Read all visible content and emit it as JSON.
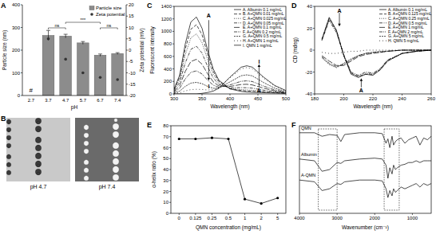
{
  "chart_data": [
    {
      "type": "bar",
      "panel": "A",
      "categories": [
        "2.7",
        "3.7",
        "4.7",
        "5.7",
        "6.7",
        "7.4"
      ],
      "xlabel": "pH",
      "ylabel": "Particle size (nm)",
      "y2label": "Zeta potential (mV)",
      "ylim": [
        0,
        400
      ],
      "yticks": [
        0,
        100,
        200,
        300,
        400
      ],
      "y2lim": [
        -20,
        20
      ],
      "y2ticks": [
        -20,
        -15,
        -10,
        -5,
        0,
        5,
        10,
        15,
        20
      ],
      "legend": "upper right",
      "series": [
        {
          "name": "Particle size",
          "type": "bar",
          "color": "#8c8c8c",
          "values": [
            null,
            265,
            262,
            232,
            178,
            185
          ],
          "errors": [
            null,
            22,
            8,
            6,
            5,
            4
          ]
        },
        {
          "name": "Zeta potential",
          "type": "scatter",
          "axis": "y2",
          "color": "#333333",
          "marker": "circle",
          "values": [
            null,
            5,
            -4,
            -10,
            -12,
            -13
          ]
        }
      ],
      "annotations": [
        {
          "text": "#",
          "category": "2.7"
        }
      ],
      "significance": [
        {
          "text": "ns",
          "from": "3.7",
          "to": "4.7"
        },
        {
          "text": "***",
          "from": "4.7",
          "to": "6.7"
        },
        {
          "text": "ns",
          "from": "6.7",
          "to": "7.4"
        }
      ]
    },
    {
      "type": "image",
      "panel": "B",
      "categories": [
        "pH 4.7",
        "pH 7.4"
      ]
    },
    {
      "type": "line",
      "panel": "C",
      "xlabel": "Wavelength (nm)",
      "ylabel": "Fluorescent intensity",
      "xlim": [
        300,
        500
      ],
      "xticks": [
        300,
        350,
        400,
        450,
        500
      ],
      "ylim": [
        0,
        1400
      ],
      "yticks": [
        0,
        200,
        400,
        600,
        800,
        1000,
        1200,
        1400
      ],
      "legend": "upper right",
      "x": [
        300,
        310,
        320,
        330,
        340,
        350,
        360,
        370,
        380,
        400,
        420,
        430,
        440,
        460,
        480,
        500
      ],
      "series": [
        {
          "name": "A. Albumin 0.1 mg/mL",
          "color": "#000000",
          "line_style": "solid",
          "values": [
            80,
            300,
            800,
            1150,
            1230,
            1050,
            700,
            400,
            220,
            80,
            40,
            30,
            25,
            20,
            15,
            10
          ]
        },
        {
          "name": "B. A+QMN 0.01 mg/mL",
          "color": "#000000",
          "line_style": "dashed",
          "values": [
            72,
            270,
            720,
            1035,
            1107,
            945,
            631,
            362,
            202,
            84,
            55,
            47,
            42,
            30,
            20,
            11
          ]
        },
        {
          "name": "C. A+QMN 0.025 mg/mL",
          "color": "#000000",
          "line_style": "dotted",
          "values": [
            62,
            234,
            624,
            897,
            959,
            820,
            548,
            316,
            180,
            86,
            69,
            63,
            58,
            40,
            24,
            13
          ]
        },
        {
          "name": "D. A+QMN 0.05 mg/mL",
          "color": "#000000",
          "line_style": "dashdot",
          "values": [
            50,
            186,
            496,
            713,
            763,
            653,
            438,
            256,
            152,
            98,
            101,
            99,
            92,
            60,
            33,
            16
          ]
        },
        {
          "name": "E. A+QMN 0.1 mg/mL",
          "color": "#000000",
          "line_style": "longdash",
          "values": [
            36,
            135,
            360,
            518,
            554,
            476,
            322,
            194,
            127,
            120,
            151,
            154,
            144,
            93,
            49,
            22
          ]
        },
        {
          "name": "F. A+QMN 0.2 mg/mL",
          "color": "#000000",
          "line_style": "dashdotdot",
          "values": [
            24,
            90,
            240,
            345,
            369,
            319,
            220,
            140,
            106,
            144,
            202,
            209,
            198,
            126,
            65,
            27
          ]
        },
        {
          "name": "G. A+QMN 0.5 mg/mL",
          "color": "#000000",
          "line_style": "shortdash",
          "values": [
            12,
            45,
            120,
            173,
            185,
            164,
            120,
            90,
            93,
            192,
            291,
            305,
            289,
            183,
            92,
            38
          ]
        },
        {
          "name": "H. A+QMN 1 mg/mL",
          "color": "#000000",
          "line_style": "loosedot",
          "values": [
            5,
            18,
            48,
            69,
            74,
            71,
            63,
            66,
            97,
            257,
            401,
            422,
            401,
            253,
            127,
            51
          ]
        },
        {
          "name": "I. QMN 1 mg/mL",
          "color": "#000000",
          "line_style": "solid",
          "values": [
            0,
            0,
            0,
            0,
            0,
            9,
            23,
            45,
            90,
            270,
            428,
            450,
            428,
            270,
            135,
            54
          ]
        }
      ],
      "annotations": [
        {
          "text": "A",
          "x": 362,
          "y": 1250
        },
        {
          "text": "I",
          "x": 362,
          "y": 120
        },
        {
          "text": "A",
          "x": 452,
          "y": 60
        },
        {
          "text": "I",
          "x": 452,
          "y": 520
        }
      ],
      "arrows": [
        {
          "x": 362,
          "from": 1180,
          "to": 220
        },
        {
          "x": 452,
          "from": 110,
          "to": 470
        }
      ]
    },
    {
      "type": "line",
      "panel": "D",
      "xlabel": "Wavelength (nm)",
      "ylabel": "CD (mdeg)",
      "xlim": [
        180,
        260
      ],
      "xticks": [
        180,
        200,
        220,
        240,
        260
      ],
      "ylim": [
        -40,
        40
      ],
      "yticks": [
        -40,
        -20,
        0,
        20,
        40
      ],
      "legend": "upper right",
      "x": [
        185,
        190,
        195,
        200,
        205,
        210,
        215,
        220,
        225,
        230,
        240,
        250,
        260
      ],
      "series": [
        {
          "name": "A. Albumin 0.1 mg/mL",
          "color": "#000000",
          "line_style": "solid",
          "values": [
            10,
            30,
            18,
            -5,
            -22,
            -25,
            -22,
            -23,
            -18,
            -10,
            -3,
            -1,
            0
          ]
        },
        {
          "name": "B. A+QMN 0.125 mg/mL",
          "color": "#000000",
          "line_style": "dashed",
          "values": [
            10,
            29,
            18,
            -5,
            -21,
            -24,
            -22,
            -22,
            -18,
            -10,
            -3,
            -1,
            0
          ]
        },
        {
          "name": "C. A+QMN 0.25 mg/mL",
          "color": "#000000",
          "line_style": "dotted",
          "values": [
            9,
            28,
            17,
            -5,
            -21,
            -24,
            -21,
            -22,
            -17,
            -9,
            -3,
            -1,
            0
          ]
        },
        {
          "name": "D. A+QMN 0.5 mg/mL",
          "color": "#000000",
          "line_style": "dashdot",
          "values": [
            9,
            27,
            16,
            -4,
            -20,
            -23,
            -20,
            -21,
            -17,
            -9,
            -3,
            -1,
            0
          ]
        },
        {
          "name": "E. A+QMN 1 mg/mL",
          "color": "#000000",
          "line_style": "longdash",
          "values": [
            -5,
            -10,
            -14,
            -14,
            -10,
            -6,
            -4,
            -3,
            -2,
            -1,
            0,
            0,
            0
          ]
        },
        {
          "name": "F. A+QMN 2 mg/mL",
          "color": "#000000",
          "line_style": "dashdotdot",
          "values": [
            -6,
            -12,
            -15,
            -13,
            -9,
            -5,
            -3,
            -2,
            -2,
            -1,
            0,
            0,
            0
          ]
        },
        {
          "name": "G. A+QMN 5 mg/mL",
          "color": "#000000",
          "line_style": "shortdash",
          "values": [
            -7,
            -13,
            -16,
            -12,
            -8,
            -5,
            -3,
            -2,
            -1,
            -1,
            0,
            0,
            0
          ]
        },
        {
          "name": "H. QMN 5 mg/mL",
          "color": "#000000",
          "line_style": "loosedot",
          "values": [
            -2,
            -3,
            -3,
            -2,
            -1,
            -1,
            0,
            0,
            0,
            0,
            0,
            0,
            0
          ]
        }
      ],
      "annotations": [
        {
          "text": "A",
          "x": 197,
          "y": 36
        },
        {
          "text": "A",
          "x": 212,
          "y": -37
        }
      ],
      "arrows": [
        {
          "x": 197,
          "from": 34,
          "to": 22
        },
        {
          "x": 212,
          "from": -34,
          "to": -26
        }
      ]
    },
    {
      "type": "line",
      "panel": "E",
      "xlabel": "QMN concentration (mg/mL)",
      "ylabel": "α-helix ratio (%)",
      "categories": [
        "0",
        "0.125",
        "0.25",
        "0.5",
        "1",
        "2",
        "5"
      ],
      "ylim": [
        0,
        80
      ],
      "yticks": [
        0,
        10,
        20,
        30,
        40,
        50,
        60,
        70,
        80
      ],
      "color": "#000000",
      "marker": "circle",
      "values": [
        68,
        68,
        69,
        68,
        13,
        9,
        14
      ]
    },
    {
      "type": "line",
      "panel": "F",
      "xlabel": "Wavenumber (cm⁻¹)",
      "xlim": [
        4000,
        500
      ],
      "xticks": [
        4000,
        3000,
        2000,
        1000
      ],
      "ylim": [
        0,
        100
      ],
      "tick_labels": "x",
      "x": [
        4000,
        3600,
        3400,
        3200,
        3000,
        2900,
        2800,
        2400,
        2000,
        1800,
        1700,
        1650,
        1600,
        1540,
        1500,
        1450,
        1400,
        1300,
        1200,
        1100,
        1000,
        900,
        800,
        700,
        600,
        500
      ],
      "series": [
        {
          "name": "QMN",
          "color": "#000000",
          "line_style": "solid",
          "values": [
            92,
            92,
            88,
            90,
            89,
            82,
            90,
            92,
            92,
            91,
            80,
            85,
            75,
            88,
            78,
            82,
            84,
            86,
            80,
            84,
            86,
            88,
            78,
            86,
            84,
            88
          ]
        },
        {
          "name": "Albumin",
          "color": "#000000",
          "line_style": "solid",
          "values": [
            62,
            60,
            48,
            50,
            58,
            57,
            60,
            62,
            63,
            62,
            55,
            40,
            52,
            45,
            55,
            50,
            52,
            55,
            56,
            58,
            58,
            60,
            58,
            60,
            60,
            60
          ]
        },
        {
          "name": "A-QMN",
          "color": "#000000",
          "line_style": "solid",
          "values": [
            38,
            36,
            26,
            28,
            34,
            33,
            36,
            38,
            38,
            37,
            28,
            18,
            26,
            20,
            28,
            24,
            26,
            30,
            28,
            30,
            32,
            34,
            30,
            34,
            32,
            34
          ]
        }
      ],
      "regions": [
        [
          3500,
          3000
        ],
        [
          1750,
          1350
        ]
      ]
    }
  ]
}
